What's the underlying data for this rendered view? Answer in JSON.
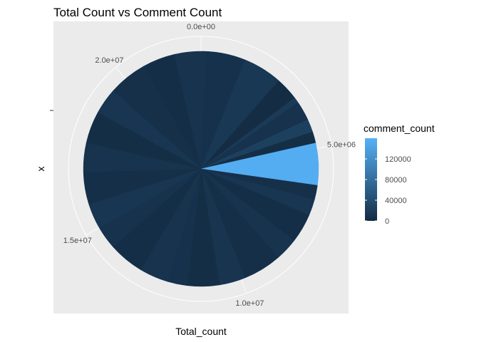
{
  "chart_data": {
    "type": "pie",
    "title": "Total Count vs Comment Count",
    "xlabel": "Total_count",
    "ylabel": "x",
    "theta_range": [
      0,
      22500000
    ],
    "theta_ticks": [
      {
        "value": 0,
        "label": "0.0e+00"
      },
      {
        "value": 5000000,
        "label": "5.0e+06"
      },
      {
        "value": 10000000,
        "label": "1.0e+07"
      },
      {
        "value": 15000000,
        "label": "1.5e+07"
      },
      {
        "value": 20000000,
        "label": "2.0e+07"
      }
    ],
    "legend": {
      "title": "comment_count",
      "position": "right",
      "range": [
        0,
        160000
      ],
      "ticks": [
        {
          "value": 0,
          "label": "0"
        },
        {
          "value": 40000,
          "label": "40000"
        },
        {
          "value": 80000,
          "label": "80000"
        },
        {
          "value": 120000,
          "label": "120000"
        }
      ]
    },
    "slices": [
      {
        "total_count": 3300000,
        "comment_count": 2000
      },
      {
        "total_count": 180000,
        "comment_count": 18000
      },
      {
        "total_count": 600000,
        "comment_count": 8000
      },
      {
        "total_count": 400000,
        "comment_count": 25000
      },
      {
        "total_count": 350000,
        "comment_count": 3000
      },
      {
        "total_count": 1300000,
        "comment_count": 155000
      },
      {
        "total_count": 450000,
        "comment_count": 6000
      },
      {
        "total_count": 500000,
        "comment_count": 12000
      },
      {
        "total_count": 900000,
        "comment_count": 4000
      },
      {
        "total_count": 700000,
        "comment_count": 9000
      },
      {
        "total_count": 1200000,
        "comment_count": 5000
      },
      {
        "total_count": 800000,
        "comment_count": 11000
      },
      {
        "total_count": 1000000,
        "comment_count": 3000
      },
      {
        "total_count": 600000,
        "comment_count": 7000
      },
      {
        "total_count": 900000,
        "comment_count": 10000
      },
      {
        "total_count": 1100000,
        "comment_count": 4000
      },
      {
        "total_count": 700000,
        "comment_count": 8000
      },
      {
        "total_count": 800000,
        "comment_count": 13000
      },
      {
        "total_count": 1000000,
        "comment_count": 5000
      },
      {
        "total_count": 900000,
        "comment_count": 9000
      },
      {
        "total_count": 1000000,
        "comment_count": 3000
      },
      {
        "total_count": 800000,
        "comment_count": 12000
      },
      {
        "total_count": 1200000,
        "comment_count": 6000
      },
      {
        "total_count": 1000000,
        "comment_count": 4000
      },
      {
        "total_count": 1000000,
        "comment_count": 10000
      },
      {
        "total_count": 1200000,
        "comment_count": 7000
      },
      {
        "total_count": 1200000,
        "comment_count": 15000
      }
    ],
    "grid": true
  }
}
